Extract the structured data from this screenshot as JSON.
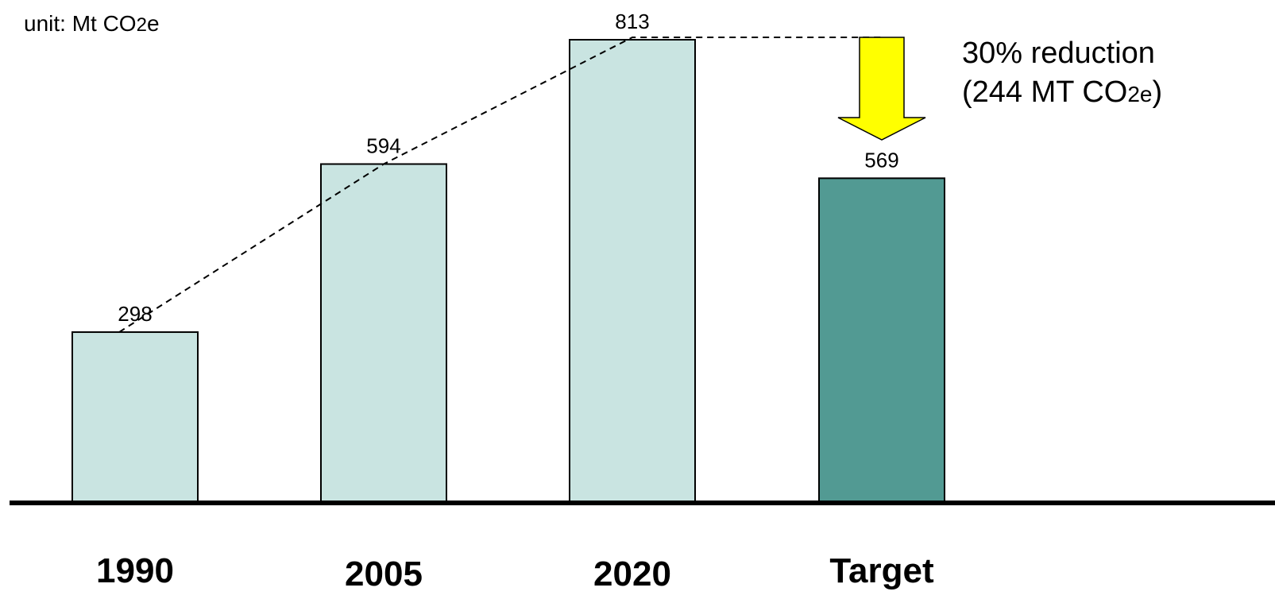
{
  "chart_data": {
    "type": "bar",
    "categories": [
      "1990",
      "2005",
      "2020",
      "Target"
    ],
    "values": [
      298,
      594,
      813,
      569
    ],
    "data_labels": [
      "298",
      "594",
      "813",
      "569"
    ],
    "colors": [
      "#c9e4e1",
      "#c9e4e1",
      "#c9e4e1",
      "#529a93"
    ],
    "unit": {
      "prefix": "unit: Mt CO",
      "sub": "2",
      "suffix": "e"
    },
    "annotation": {
      "line1": "30% reduction",
      "line2_prefix": "(244 MT CO",
      "line2_sub": "2e",
      "line2_suffix": ")",
      "arrow_color": "#ffff00",
      "reduction_value": 244
    },
    "ylim": [
      0,
      813
    ],
    "grid": false,
    "legend": "none"
  }
}
